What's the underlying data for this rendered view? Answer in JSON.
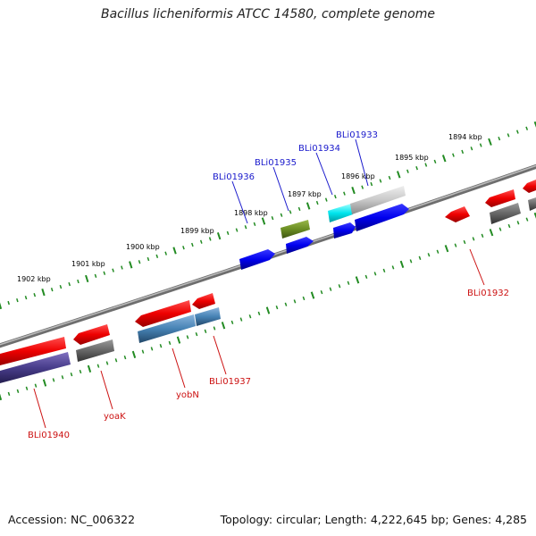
{
  "title": "Bacillus licheniformis ATCC 14580, complete genome",
  "footer": {
    "accession": "Accession: NC_006322",
    "topology": "Topology: circular; Length: 4,222,645 bp; Genes: 4,285"
  },
  "colors": {
    "background": "#ffffff",
    "backbone": "#808080",
    "tick_marks": "#228B22",
    "label_plus_strand": "#1a1acc",
    "label_minus_strand": "#cc1111"
  },
  "ruler_ticks": [
    {
      "label": "1894 kbp"
    },
    {
      "label": "1895 kbp"
    },
    {
      "label": "1896 kbp"
    },
    {
      "label": "1897 kbp"
    },
    {
      "label": "1898 kbp"
    },
    {
      "label": "1899 kbp"
    },
    {
      "label": "1900 kbp"
    },
    {
      "label": "1901 kbp"
    },
    {
      "label": "1902 kbp"
    }
  ],
  "gene_labels": [
    {
      "name": "BLi01933",
      "strand": "plus"
    },
    {
      "name": "BLi01934",
      "strand": "plus"
    },
    {
      "name": "BLi01935",
      "strand": "plus"
    },
    {
      "name": "BLi01936",
      "strand": "plus"
    },
    {
      "name": "BLi01932",
      "strand": "minus"
    },
    {
      "name": "BLi01937",
      "strand": "minus"
    },
    {
      "name": "yobN",
      "strand": "minus"
    },
    {
      "name": "yoaK",
      "strand": "minus"
    },
    {
      "name": "BLi01940",
      "strand": "minus"
    }
  ],
  "feature_colors": [
    "red",
    "blue",
    "olive",
    "cyan",
    "gray",
    "light-gray",
    "steel-blue",
    "dark-slate-blue"
  ]
}
